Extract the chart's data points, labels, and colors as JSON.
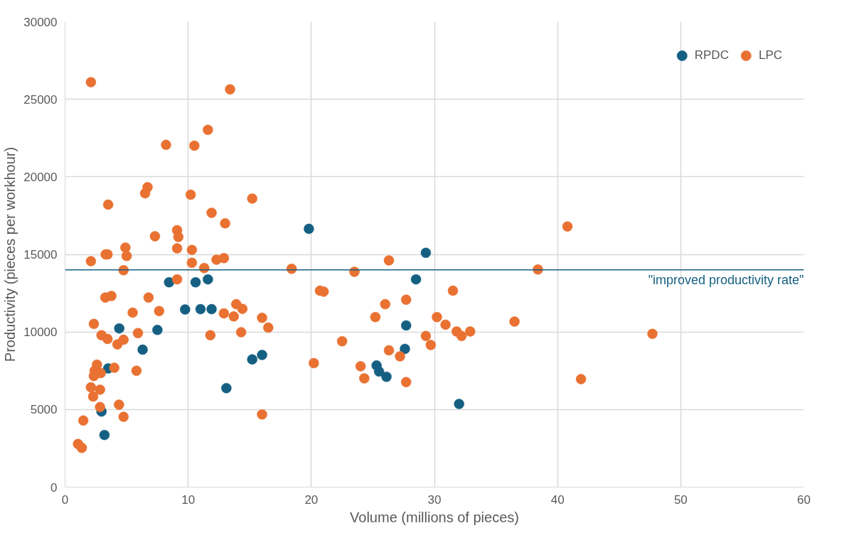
{
  "chart_data": {
    "type": "scatter",
    "xlabel": "Volume (millions of pieces)",
    "ylabel": "Productivity (pieces per workhour)",
    "xlim": [
      0,
      60
    ],
    "xticks": [
      0,
      10,
      20,
      30,
      40,
      50,
      60
    ],
    "ylim": [
      0,
      30000
    ],
    "yticks": [
      0,
      5000,
      10000,
      15000,
      20000,
      25000,
      30000
    ],
    "grid": true,
    "legend": "top right",
    "marker": "circle",
    "ref_lines": [
      {
        "axis": "y",
        "value": 14000,
        "label": "\"improved productivity rate\"",
        "color": "#156082",
        "line_style": "solid"
      }
    ],
    "series": [
      {
        "name": "RPDC",
        "color": "#156082",
        "x": [
          2.96,
          3.2,
          3.5,
          4.4,
          6.3,
          7.5,
          8.45,
          9.75,
          10.6,
          11.0,
          11.6,
          11.9,
          13.1,
          15.2,
          16.0,
          19.8,
          25.3,
          25.5,
          26.1,
          27.6,
          27.7,
          28.5,
          29.3,
          32.0
        ],
        "values": [
          4870,
          3360,
          7650,
          10230,
          8860,
          10130,
          13200,
          11450,
          13200,
          11470,
          13390,
          11470,
          6380,
          8230,
          8520,
          16650,
          7840,
          7450,
          7110,
          8910,
          10420,
          13390,
          15100,
          5360
        ]
      },
      {
        "name": "LPC",
        "color": "#e97132",
        "x": [
          2.1,
          13.4,
          11.6,
          8.2,
          10.5,
          6.7,
          6.5,
          10.2,
          3.5,
          15.2,
          11.9,
          13.0,
          7.3,
          9.1,
          9.2,
          2.1,
          3.3,
          3.45,
          4.9,
          5.0,
          9.1,
          10.3,
          10.3,
          4.75,
          9.1,
          11.3,
          12.3,
          12.9,
          18.4,
          26.3,
          23.5,
          20.7,
          21.0,
          31.5,
          38.4,
          40.8,
          27.7,
          26.0,
          25.2,
          30.2,
          30.9,
          31.8,
          32.2,
          32.9,
          29.3,
          29.7,
          26.3,
          27.2,
          22.5,
          24.0,
          24.3,
          27.7,
          20.2,
          36.5,
          41.9,
          47.7,
          13.9,
          14.4,
          12.9,
          13.7,
          16.0,
          16.5,
          11.8,
          14.3,
          16.0,
          3.27,
          3.76,
          6.78,
          5.49,
          7.64,
          2.34,
          5.92,
          2.96,
          3.45,
          4.25,
          4.75,
          2.59,
          2.4,
          2.9,
          2.34,
          4.0,
          5.8,
          2.1,
          2.84,
          2.28,
          2.84,
          4.38,
          4.75,
          1.48,
          1.05,
          1.36
        ],
        "values": [
          26100,
          25640,
          23030,
          22060,
          22010,
          19330,
          18940,
          18850,
          18210,
          18600,
          17680,
          17000,
          16170,
          16560,
          16120,
          14560,
          15000,
          15000,
          15440,
          14900,
          15390,
          15290,
          14460,
          13980,
          13390,
          14120,
          14660,
          14760,
          14070,
          14610,
          13880,
          12660,
          12600,
          12660,
          14030,
          16800,
          12080,
          11790,
          10960,
          10960,
          10470,
          10030,
          9740,
          10030,
          9740,
          9160,
          8820,
          8430,
          9400,
          7790,
          7010,
          6770,
          7990,
          10670,
          6960,
          9880,
          11790,
          11490,
          11200,
          11000,
          10910,
          10280,
          9790,
          9980,
          4680,
          12220,
          12320,
          12220,
          11250,
          11350,
          10520,
          9930,
          9790,
          9550,
          9200,
          9500,
          7890,
          7500,
          7350,
          7160,
          7690,
          7500,
          6430,
          6280,
          5840,
          5160,
          5310,
          4530,
          4290,
          2780,
          2530
        ]
      }
    ]
  }
}
